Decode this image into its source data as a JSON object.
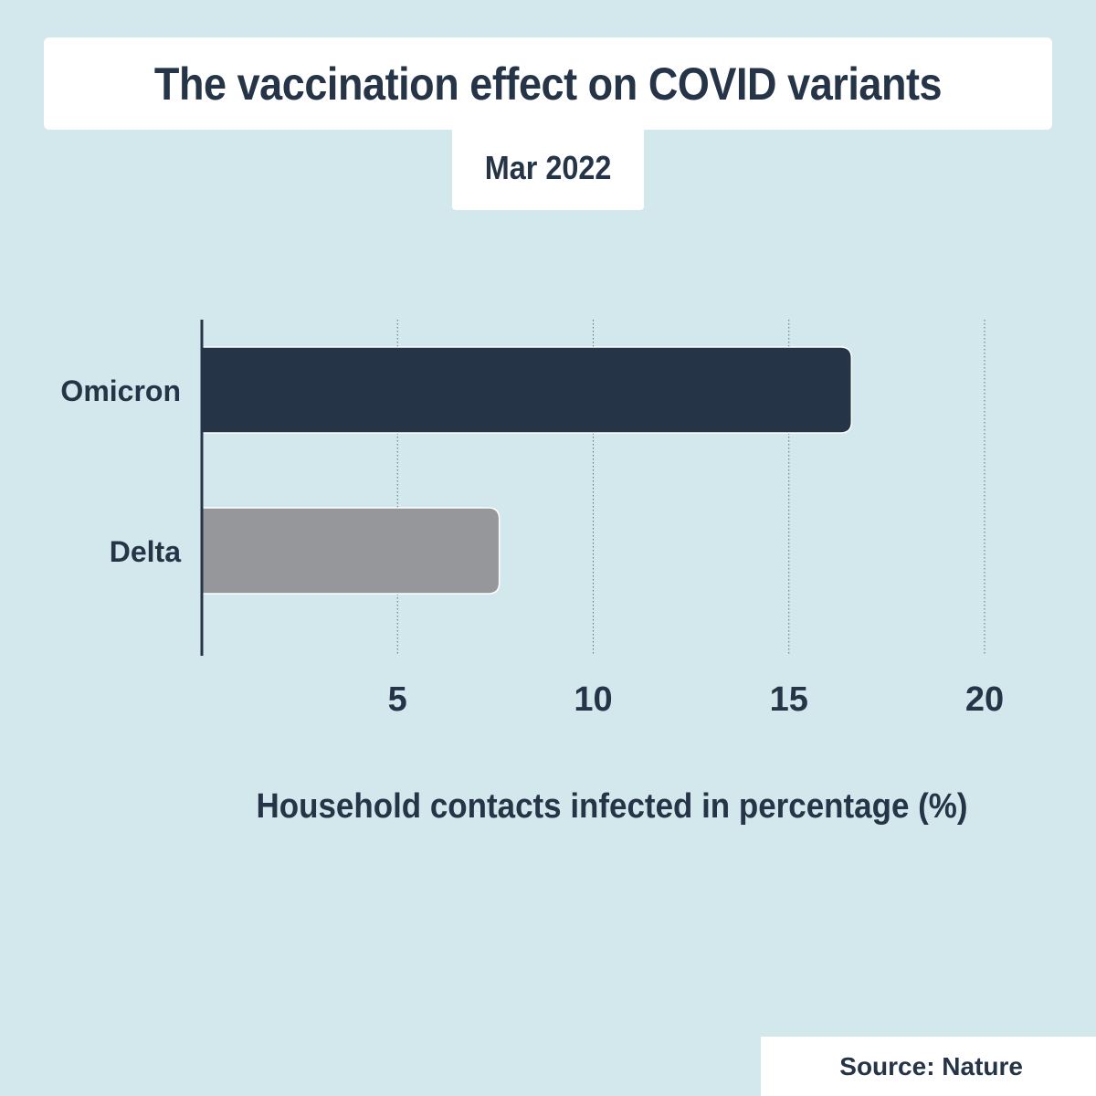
{
  "title": "The vaccination effect on COVID variants",
  "subtitle": "Mar 2022",
  "source": "Source: Nature",
  "colors": {
    "background": "#d2e8ec",
    "text": "#253547",
    "omicron_bar": "#253547",
    "delta_bar": "#96979b"
  },
  "chart_data": {
    "type": "bar",
    "orientation": "horizontal",
    "title": "The vaccination effect on COVID variants",
    "subtitle": "Mar 2022",
    "categories": [
      "Omicron",
      "Delta"
    ],
    "values": [
      16.6,
      7.6
    ],
    "bar_colors": [
      "#253547",
      "#96979b"
    ],
    "xlabel": "Household contacts infected in percentage (%)",
    "ylabel": "",
    "xlim": [
      0,
      20
    ],
    "xticks": [
      5,
      10,
      15,
      20
    ],
    "grid": "vertical dotted",
    "legend": "none"
  }
}
